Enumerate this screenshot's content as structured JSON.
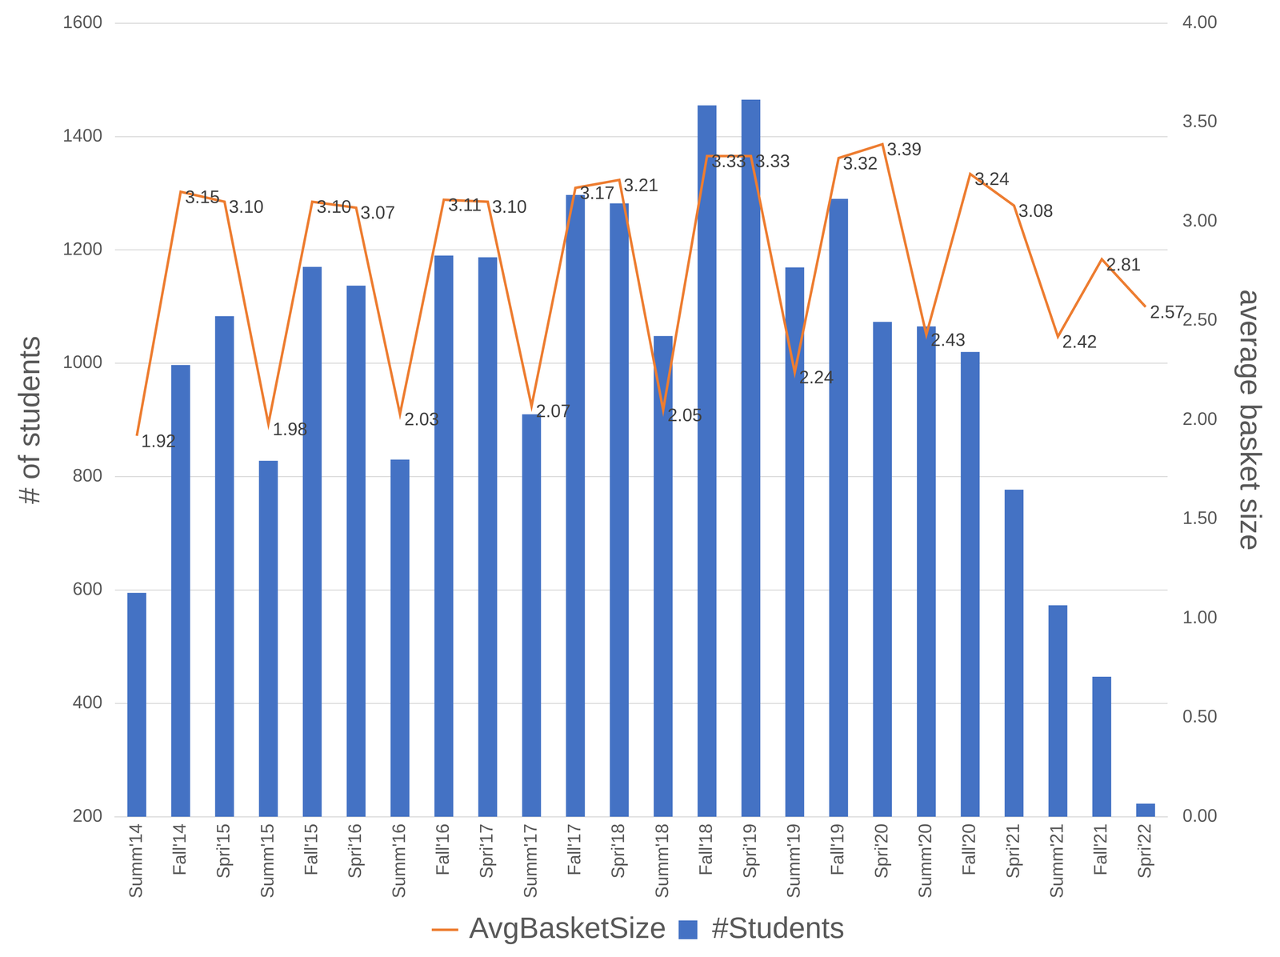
{
  "chart_data": {
    "type": "bar",
    "categories": [
      "Summ'14",
      "Fall'14",
      "Spri'15",
      "Summ'15",
      "Fall'15",
      "Spri'16",
      "Summ'16",
      "Fall'16",
      "Spri'17",
      "Summ'17",
      "Fall'17",
      "Spri'18",
      "Summ'18",
      "Fall'18",
      "Spri'19",
      "Summ'19",
      "Fall'19",
      "Spri'20",
      "Summ'20",
      "Fall'20",
      "Spri'21",
      "Summ'21",
      "Fall'21",
      "Spri'22"
    ],
    "series": [
      {
        "name": "#Students",
        "type": "bar",
        "color": "#4472c4",
        "values": [
          595,
          997,
          1083,
          828,
          1170,
          1137,
          830,
          1190,
          1187,
          910,
          1297,
          1282,
          1048,
          1455,
          1465,
          1169,
          1290,
          1073,
          1065,
          1020,
          777,
          573,
          447,
          223
        ]
      },
      {
        "name": "AvgBasketSize",
        "type": "line",
        "axis": "y2",
        "color": "#ed7d31",
        "marker": "none",
        "line_style": "solid",
        "data_labels": true,
        "values": [
          1.92,
          3.15,
          3.1,
          1.98,
          3.1,
          3.07,
          2.03,
          3.11,
          3.1,
          2.07,
          3.17,
          3.21,
          2.05,
          3.33,
          3.33,
          2.24,
          3.32,
          3.39,
          2.43,
          3.24,
          3.08,
          2.42,
          2.81,
          2.57
        ],
        "value_labels": [
          "1.92",
          "3.15",
          "3.10",
          "1.98",
          "3.10",
          "3.07",
          "2.03",
          "3.11",
          "3.10",
          "2.07",
          "3.17",
          "3.21",
          "2.05",
          "3.33",
          "3.33",
          "2.24",
          "3.32",
          "3.39",
          "2.43",
          "3.24",
          "3.08",
          "2.42",
          "2.81",
          "2.57"
        ]
      }
    ],
    "y_label": "# of students",
    "y2_label": "average basket size",
    "ylim": [
      200,
      1600
    ],
    "yticks": [
      200,
      400,
      600,
      800,
      1000,
      1200,
      1400,
      1600
    ],
    "y2lim": [
      0,
      4
    ],
    "y2ticks": [
      {
        "value": 0,
        "label": "0.00"
      },
      {
        "value": 0.5,
        "label": "0.50"
      },
      {
        "value": 1,
        "label": "1.00"
      },
      {
        "value": 1.5,
        "label": "1.50"
      },
      {
        "value": 2,
        "label": "2.00"
      },
      {
        "value": 2.5,
        "label": "2.50"
      },
      {
        "value": 3,
        "label": "3.00"
      },
      {
        "value": 3.5,
        "label": "3.50"
      },
      {
        "value": 4,
        "label": "4.00"
      }
    ],
    "grid": true,
    "legend": "bottom"
  }
}
